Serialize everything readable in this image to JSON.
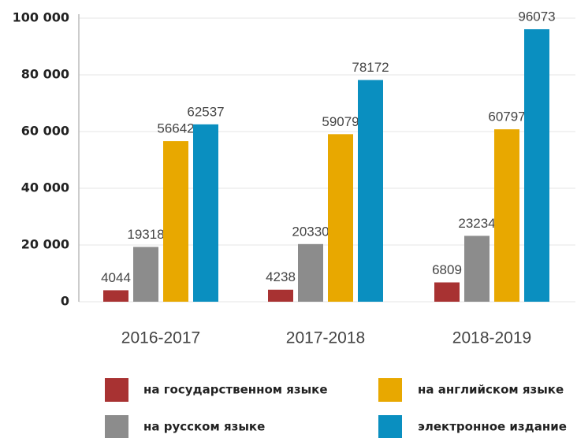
{
  "chart_data": {
    "type": "bar",
    "categories": [
      "2016-2017",
      "2017-2018",
      "2018-2019"
    ],
    "series": [
      {
        "name": "на государственном языке",
        "color": "#a83232",
        "values": [
          4044,
          4238,
          6809
        ]
      },
      {
        "name": "на русском языке",
        "color": "#8c8c8c",
        "values": [
          19318,
          20330,
          23234
        ]
      },
      {
        "name": "на английском языке",
        "color": "#e8a800",
        "values": [
          56642,
          59079,
          60797
        ]
      },
      {
        "name": "электронное издание",
        "color": "#0a8fc0",
        "values": [
          62537,
          78172,
          96073
        ]
      }
    ],
    "ylim": [
      0,
      100000
    ],
    "yticks": [
      0,
      {
        "value": 20000,
        "label": "20 000"
      },
      {
        "value": 40000,
        "label": "40 000"
      },
      {
        "value": 60000,
        "label": "60 000"
      },
      {
        "value": 80000,
        "label": "80 000"
      },
      {
        "value": 100000,
        "label": "100 000"
      }
    ],
    "grid": true
  }
}
